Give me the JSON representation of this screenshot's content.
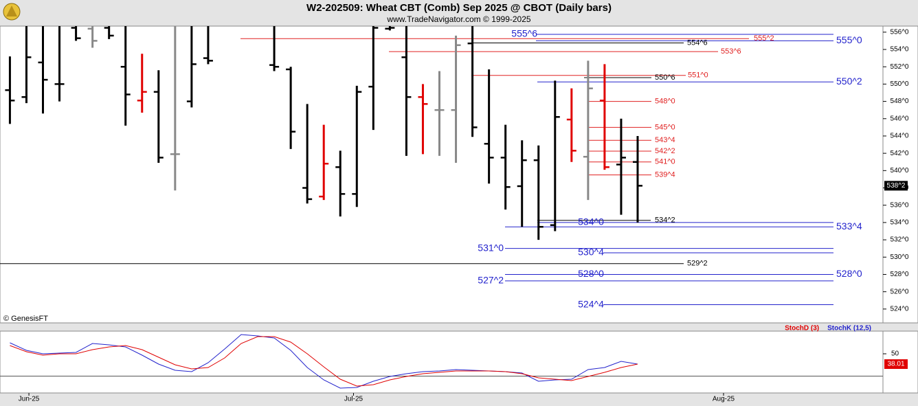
{
  "header": {
    "title": "W2-202509:  Wheat CBT (Comb) Sep 2025 @ CBOT  (Daily bars)",
    "subtitle": "www.TradeNavigator.com © 1999-2025",
    "credit": "© GenesisFT"
  },
  "chart_data": [
    {
      "type": "ohlc",
      "x": [
        0,
        1,
        2,
        3,
        4,
        5,
        6,
        7,
        8,
        9,
        10,
        11,
        12,
        16,
        17,
        18,
        19,
        20,
        21,
        22,
        23,
        24,
        25,
        26,
        27,
        28,
        29,
        30,
        31,
        32,
        33,
        34,
        35,
        36,
        37,
        38
      ],
      "open": [
        549.3,
        548.5,
        552.5,
        550.0,
        556.5,
        556.4,
        556.5,
        552.0,
        548.1,
        549.1,
        541.9,
        548.0,
        553.0,
        552.2,
        551.7,
        538.0,
        537.0,
        540.4,
        537.3,
        549.7,
        556.4,
        553.1,
        548.5,
        547.0,
        547.0,
        554.7,
        543.1,
        541.5,
        538.2,
        541.2,
        533.7,
        545.9,
        541.6,
        548.1,
        540.7,
        541.0
      ],
      "high": [
        553.2,
        556.7,
        556.7,
        556.7,
        556.7,
        556.7,
        556.7,
        556.7,
        553.5,
        551.6,
        556.7,
        556.7,
        556.7,
        556.7,
        552.0,
        547.7,
        545.3,
        542.3,
        549.8,
        556.7,
        556.7,
        556.7,
        550.0,
        551.5,
        555.6,
        556.7,
        551.7,
        545.3,
        543.5,
        542.9,
        550.4,
        549.5,
        552.7,
        552.3,
        546.0,
        544.0
      ],
      "low": [
        545.4,
        547.8,
        546.6,
        548.0,
        555.0,
        554.2,
        555.2,
        545.2,
        546.7,
        540.9,
        537.7,
        547.3,
        552.3,
        551.5,
        542.5,
        536.2,
        536.6,
        534.7,
        535.8,
        544.7,
        556.2,
        541.7,
        541.9,
        541.7,
        540.9,
        543.9,
        538.5,
        535.5,
        533.5,
        532.0,
        533.0,
        541.0,
        536.6,
        540.1,
        534.9,
        534.0
      ],
      "close": [
        548.1,
        553.1,
        550.5,
        550.0,
        555.3,
        555.0,
        555.6,
        548.8,
        549.1,
        541.5,
        541.9,
        552.3,
        552.7,
        552.0,
        544.5,
        536.7,
        540.8,
        537.3,
        549.1,
        556.5,
        556.5,
        548.5,
        547.7,
        547.0,
        554.5,
        545.0,
        541.5,
        538.1,
        541.2,
        533.5,
        546.2,
        542.3,
        549.5,
        540.4,
        541.5,
        538.25
      ],
      "bar_colors": [
        "#000000",
        "#000000",
        "#000000",
        "#000000",
        "#000000",
        "#888888",
        "#000000",
        "#000000",
        "#e00000",
        "#000000",
        "#888888",
        "#000000",
        "#000000",
        "#000000",
        "#000000",
        "#000000",
        "#e00000",
        "#000000",
        "#000000",
        "#000000",
        "#000000",
        "#000000",
        "#e00000",
        "#888888",
        "#888888",
        "#000000",
        "#000000",
        "#000000",
        "#000000",
        "#000000",
        "#000000",
        "#e00000",
        "#888888",
        "#e00000",
        "#000000",
        "#000000"
      ],
      "xlim": [
        -0.6,
        52.85
      ],
      "ylim": [
        522.4,
        556.7
      ],
      "yticks": [
        {
          "value": 556,
          "label": "556^0"
        },
        {
          "value": 554,
          "label": "554^0"
        },
        {
          "value": 552,
          "label": "552^0"
        },
        {
          "value": 550,
          "label": "550^0"
        },
        {
          "value": 548,
          "label": "548^0"
        },
        {
          "value": 546,
          "label": "546^0"
        },
        {
          "value": 544,
          "label": "544^0"
        },
        {
          "value": 542,
          "label": "542^0"
        },
        {
          "value": 540,
          "label": "540^0"
        },
        {
          "value": 538,
          "label": "538^0"
        },
        {
          "value": 536,
          "label": "536^0"
        },
        {
          "value": 534,
          "label": "534^0"
        },
        {
          "value": 532,
          "label": "532^0"
        },
        {
          "value": 530,
          "label": "530^0"
        },
        {
          "value": 528,
          "label": "528^0"
        },
        {
          "value": 526,
          "label": "526^0"
        },
        {
          "value": 524,
          "label": "524^0"
        }
      ],
      "last_price": {
        "value": 538.25,
        "label": "538^2"
      },
      "levels": [
        {
          "value": 555.75,
          "label": "555^6",
          "color": "#2222cc"
        },
        {
          "value": 555.25,
          "label": "555^2",
          "color": "#e02020"
        },
        {
          "value": 555,
          "label": "555^0",
          "color": "#2222cc"
        },
        {
          "value": 554.75,
          "label": "554^6",
          "color": "#000000"
        },
        {
          "value": 553.75,
          "label": "553^6",
          "color": "#e02020"
        },
        {
          "value": 551,
          "label": "551^0",
          "color": "#e02020"
        },
        {
          "value": 550.75,
          "label": "550^6",
          "color": "#000000"
        },
        {
          "value": 550.25,
          "label": "550^2",
          "color": "#2222cc"
        },
        {
          "value": 548,
          "label": "548^0",
          "color": "#e02020"
        },
        {
          "value": 545,
          "label": "545^0",
          "color": "#e02020"
        },
        {
          "value": 543.5,
          "label": "543^4",
          "color": "#e02020"
        },
        {
          "value": 542.25,
          "label": "542^2",
          "color": "#e02020"
        },
        {
          "value": 541,
          "label": "541^0",
          "color": "#e02020"
        },
        {
          "value": 539.5,
          "label": "539^4",
          "color": "#e02020"
        },
        {
          "value": 534.25,
          "label": "534^2",
          "color": "#000000"
        },
        {
          "value": 534,
          "label": "534^0",
          "color": "#2222cc"
        },
        {
          "value": 533.5,
          "label": "533^4",
          "color": "#2222cc"
        },
        {
          "value": 531,
          "label": "531^0",
          "color": "#2222cc"
        },
        {
          "value": 530.5,
          "label": "530^4",
          "color": "#2222cc"
        },
        {
          "value": 529.25,
          "label": "529^2",
          "color": "#000000"
        },
        {
          "value": 528,
          "label": "528^0",
          "color": "#2222cc"
        },
        {
          "value": 527.25,
          "label": "527^2",
          "color": "#2222cc"
        },
        {
          "value": 524.5,
          "label": "524^4",
          "color": "#2222cc"
        }
      ]
    },
    {
      "type": "line",
      "x": [
        0,
        1,
        2,
        3,
        4,
        5,
        6,
        7,
        8,
        9,
        10,
        11,
        12,
        13,
        14,
        15,
        16,
        17,
        18,
        19,
        20,
        21,
        22,
        23,
        24,
        25,
        26,
        27,
        28,
        29,
        30,
        31,
        32,
        33,
        34,
        35,
        36,
        37,
        38
      ],
      "series": [
        {
          "name": "StochD (3)",
          "color": "#e00000",
          "values": [
            59.6,
            52.4,
            48.4,
            50,
            50,
            54.8,
            58,
            59.6,
            54.8,
            46,
            37.2,
            32.4,
            34,
            45.2,
            62,
            70,
            70,
            63.6,
            50,
            34.8,
            20.4,
            12.4,
            14,
            19.6,
            23.6,
            26.8,
            28.4,
            30,
            30,
            30,
            29.2,
            26.8,
            22,
            20.4,
            18.8,
            23.6,
            28.4,
            34,
            38.01
          ]
        },
        {
          "name": "StochK (12,5)",
          "color": "#2222cc",
          "values": [
            62.8,
            54,
            50,
            50.8,
            51.6,
            62,
            60.4,
            58,
            48.4,
            38,
            30.8,
            29.2,
            39.6,
            55.6,
            72.4,
            70.8,
            68.4,
            54,
            34,
            19.6,
            10,
            10.8,
            18,
            23.6,
            26.8,
            29.2,
            30,
            31.6,
            30.8,
            30,
            29.2,
            27.6,
            18,
            19.6,
            20.4,
            31.6,
            34,
            41.2,
            38
          ]
        }
      ],
      "xlim": [
        -0.6,
        52.85
      ],
      "ylim": [
        4.4,
        76.4
      ],
      "yticks": [
        50
      ],
      "hline": 24,
      "xticks": [
        {
          "value": 1.15,
          "label": "Jun-25"
        },
        {
          "value": 20.8,
          "label": "Jul-25"
        },
        {
          "value": 43.2,
          "label": "Aug-25"
        }
      ]
    }
  ]
}
